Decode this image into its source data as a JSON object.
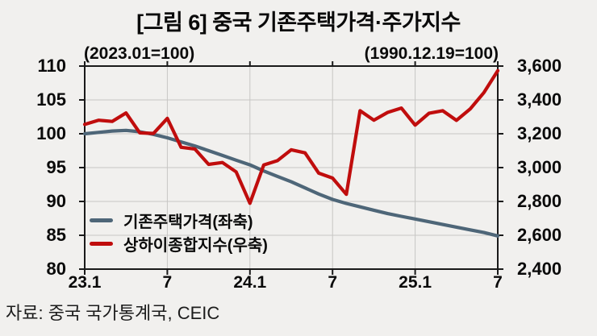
{
  "title": "[그림 6] 중국  기존주택가격·주가지수",
  "source": "자료: 중국  국가통계국, CEIC",
  "colors": {
    "background": "#f1f0ee",
    "grid": "#c7c6c4",
    "spine": "#1a1a1a",
    "home_price_line": "#4e6678",
    "stock_line": "#c00d0d",
    "text": "#0a0a0a"
  },
  "chart_data": {
    "type": "line",
    "x": {
      "months": [
        "23.01",
        "23.02",
        "23.03",
        "23.04",
        "23.05",
        "23.06",
        "23.07",
        "23.08",
        "23.09",
        "23.10",
        "23.11",
        "23.12",
        "24.01",
        "24.02",
        "24.03",
        "24.04",
        "24.05",
        "24.06",
        "24.07",
        "24.08",
        "24.09",
        "24.10",
        "24.11",
        "24.12",
        "25.01",
        "25.02",
        "25.03",
        "25.04",
        "25.05",
        "25.06",
        "25.07"
      ],
      "tick_labels": [
        "23.1",
        "7",
        "24.1",
        "7",
        "25.1",
        "7"
      ],
      "tick_month_index": [
        0,
        6,
        12,
        18,
        24,
        30
      ]
    },
    "y_left": {
      "caption": "(2023.01=100)",
      "ticks": [
        "110",
        "105",
        "100",
        "95",
        "90",
        "85",
        "80"
      ],
      "lim": [
        80,
        110
      ],
      "grid": "on"
    },
    "y_right": {
      "caption": "(1990.12.19=100)",
      "ticks": [
        "3,600",
        "3,400",
        "3,200",
        "3,000",
        "2,800",
        "2,600",
        "2,400"
      ],
      "lim": [
        2400,
        3600
      ]
    },
    "series": [
      {
        "name": "기존주택가격(좌축)",
        "axis": "left",
        "color": "#4e6678",
        "values": [
          100.0,
          100.2,
          100.4,
          100.5,
          100.3,
          99.9,
          99.4,
          98.8,
          98.2,
          97.5,
          96.8,
          96.1,
          95.4,
          94.5,
          93.7,
          92.9,
          92.0,
          91.1,
          90.3,
          89.7,
          89.2,
          88.7,
          88.2,
          87.8,
          87.4,
          87.0,
          86.6,
          86.2,
          85.8,
          85.4,
          84.9
        ]
      },
      {
        "name": "상하이종합지수(우축)",
        "axis": "right",
        "color": "#c00d0d",
        "values": [
          3255,
          3280,
          3273,
          3323,
          3205,
          3202,
          3291,
          3120,
          3110,
          3019,
          3030,
          2975,
          2789,
          3015,
          3041,
          3105,
          3087,
          2967,
          2938,
          2842,
          3336,
          3280,
          3326,
          3352,
          3251,
          3321,
          3336,
          3279,
          3347,
          3444,
          3573
        ]
      }
    ],
    "legend_position": "inside-lower-left"
  }
}
